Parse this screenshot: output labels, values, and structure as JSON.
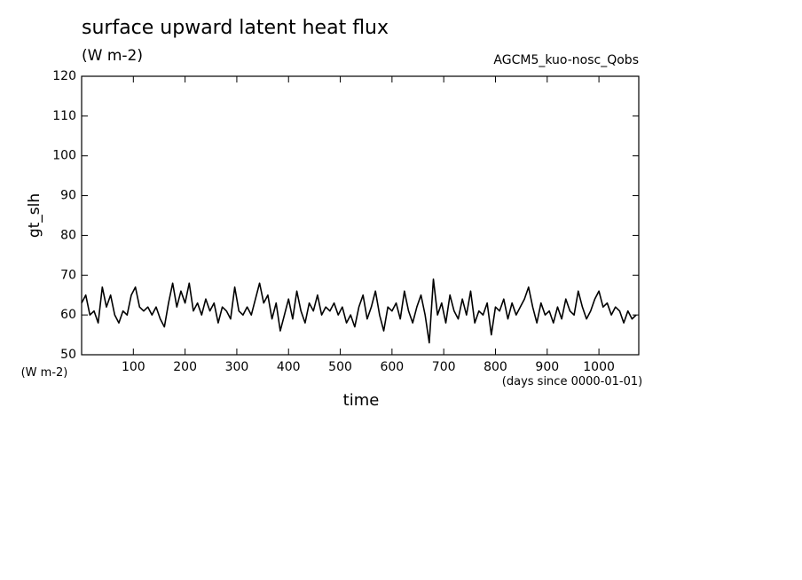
{
  "chart_data": {
    "type": "line",
    "title": "surface upward latent heat flux",
    "subtitle": "(W m-2)",
    "annotation": "AGCM5_kuo-nosc_Qobs",
    "ylabel": "gt_slh",
    "yunits": "(W m-2)",
    "xlabel": "time",
    "xunits": "(days since 0000-01-01)",
    "color": "#000000",
    "x": [
      0,
      8,
      16,
      24,
      32,
      40,
      48,
      56,
      64,
      72,
      80,
      88,
      96,
      104,
      112,
      120,
      128,
      136,
      144,
      152,
      160,
      168,
      176,
      184,
      192,
      200,
      208,
      216,
      224,
      232,
      240,
      248,
      256,
      264,
      272,
      280,
      288,
      296,
      304,
      312,
      320,
      328,
      336,
      344,
      352,
      360,
      368,
      376,
      384,
      392,
      400,
      408,
      416,
      424,
      432,
      440,
      448,
      456,
      464,
      472,
      480,
      488,
      496,
      504,
      512,
      520,
      528,
      536,
      544,
      552,
      560,
      568,
      576,
      584,
      592,
      600,
      608,
      616,
      624,
      632,
      640,
      648,
      656,
      664,
      672,
      680,
      688,
      696,
      704,
      712,
      720,
      728,
      736,
      744,
      752,
      760,
      768,
      776,
      784,
      792,
      800,
      808,
      816,
      824,
      832,
      840,
      848,
      856,
      864,
      872,
      880,
      888,
      896,
      904,
      912,
      920,
      928,
      936,
      944,
      952,
      960,
      968,
      976,
      984,
      992,
      1000,
      1008,
      1016,
      1024,
      1032,
      1040,
      1048,
      1056,
      1064,
      1072
    ],
    "values": [
      63,
      65,
      60,
      61,
      58,
      67,
      62,
      65,
      60,
      58,
      61,
      60,
      65,
      67,
      62,
      61,
      62,
      60,
      62,
      59,
      57,
      63,
      68,
      62,
      66,
      63,
      68,
      61,
      63,
      60,
      64,
      61,
      63,
      58,
      62,
      61,
      59,
      67,
      61,
      60,
      62,
      60,
      64,
      68,
      63,
      65,
      59,
      63,
      56,
      60,
      64,
      59,
      66,
      61,
      58,
      63,
      61,
      65,
      60,
      62,
      61,
      63,
      60,
      62,
      58,
      60,
      57,
      62,
      65,
      59,
      62,
      66,
      60,
      56,
      62,
      61,
      63,
      59,
      66,
      61,
      58,
      62,
      65,
      60,
      53,
      69,
      60,
      63,
      58,
      65,
      61,
      59,
      64,
      60,
      66,
      58,
      61,
      60,
      63,
      55,
      62,
      61,
      64,
      59,
      63,
      60,
      62,
      64,
      67,
      62,
      58,
      63,
      60,
      61,
      58,
      62,
      59,
      64,
      61,
      60,
      66,
      62,
      59,
      61,
      64,
      66,
      62,
      63,
      60,
      62,
      61,
      58,
      61,
      59,
      60
    ],
    "xlim": [
      0,
      1077
    ],
    "ylim": [
      50,
      120
    ],
    "xticks": [
      100,
      200,
      300,
      400,
      500,
      600,
      700,
      800,
      900,
      1000
    ],
    "yticks": [
      50,
      60,
      70,
      80,
      90,
      100,
      110,
      120
    ]
  }
}
